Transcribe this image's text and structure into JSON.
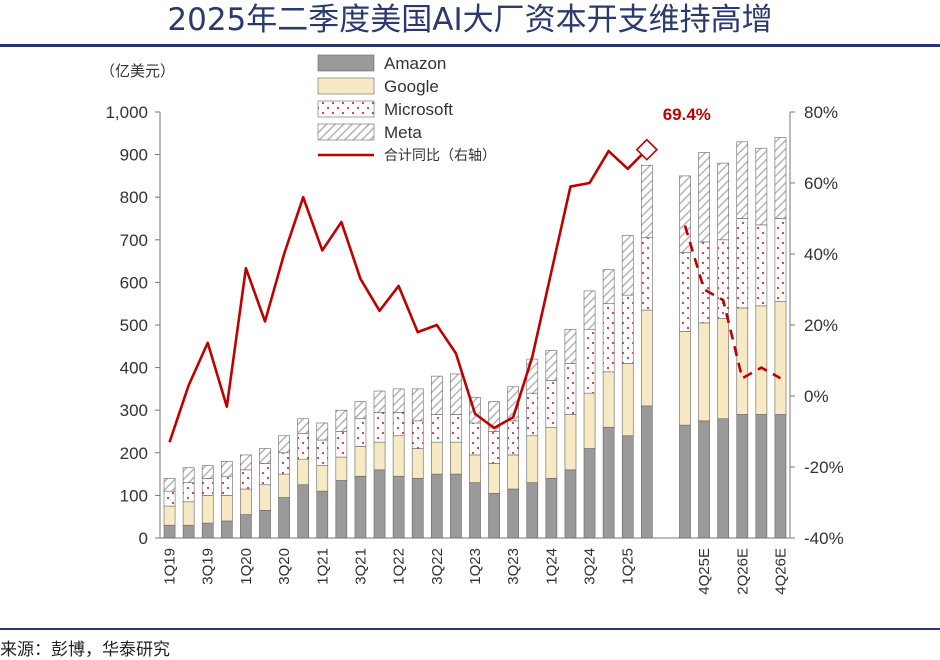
{
  "title": "2025年二季度美国AI大厂资本开支维持高增",
  "unit_label": "（亿美元）",
  "source": "来源：彭博，华泰研究",
  "colors": {
    "amazon": "#9a9a9a",
    "google": "#f6e9c3",
    "microsoft": "#ffffff",
    "microsoft_dots": "#d33",
    "meta": "#ffffff",
    "meta_hatch": "#b5b5b5",
    "line": "#c00000",
    "title": "#2a3a6e",
    "rule": "#27356b"
  },
  "chart_data": {
    "type": "bar",
    "stacked": true,
    "legend_position": "top-center",
    "categories": [
      "1Q19",
      "2Q19",
      "3Q19",
      "4Q19",
      "1Q20",
      "2Q20",
      "3Q20",
      "4Q20",
      "1Q21",
      "2Q21",
      "3Q21",
      "4Q21",
      "1Q22",
      "2Q22",
      "3Q22",
      "4Q22",
      "1Q23",
      "2Q23",
      "3Q23",
      "4Q23",
      "1Q24",
      "2Q24",
      "3Q24",
      "4Q24",
      "1Q25",
      "2Q25",
      "",
      "3Q25E",
      "4Q25E",
      "1Q26E",
      "2Q26E",
      "3Q26E",
      "4Q26E"
    ],
    "tick_labels": [
      "1Q19",
      "3Q19",
      "1Q20",
      "3Q20",
      "1Q21",
      "3Q21",
      "1Q22",
      "3Q22",
      "1Q23",
      "3Q23",
      "1Q24",
      "3Q24",
      "1Q25",
      "4Q25E",
      "2Q26E",
      "4Q26E"
    ],
    "tick_label_indices": [
      0,
      2,
      4,
      6,
      8,
      10,
      12,
      14,
      16,
      18,
      20,
      22,
      24,
      28,
      30,
      32
    ],
    "series": [
      {
        "name": "Amazon",
        "values": [
          30,
          30,
          35,
          40,
          55,
          65,
          95,
          125,
          110,
          135,
          145,
          160,
          145,
          140,
          150,
          150,
          130,
          105,
          115,
          130,
          140,
          160,
          210,
          260,
          240,
          310,
          null,
          265,
          275,
          280,
          290,
          290,
          290
        ]
      },
      {
        "name": "Google",
        "values": [
          45,
          55,
          65,
          60,
          60,
          60,
          55,
          60,
          60,
          55,
          70,
          65,
          95,
          70,
          75,
          75,
          65,
          70,
          80,
          110,
          120,
          130,
          130,
          130,
          170,
          225,
          null,
          220,
          230,
          235,
          250,
          255,
          265
        ]
      },
      {
        "name": "Microsoft",
        "values": [
          35,
          45,
          40,
          45,
          45,
          50,
          50,
          60,
          60,
          60,
          65,
          70,
          55,
          65,
          65,
          65,
          75,
          75,
          80,
          100,
          110,
          120,
          150,
          160,
          160,
          170,
          null,
          185,
          190,
          185,
          210,
          190,
          195
        ]
      },
      {
        "name": "Meta",
        "values": [
          30,
          35,
          30,
          35,
          35,
          35,
          40,
          35,
          40,
          50,
          40,
          50,
          55,
          75,
          90,
          95,
          60,
          70,
          80,
          80,
          70,
          80,
          90,
          80,
          140,
          170,
          null,
          180,
          210,
          180,
          180,
          180,
          190
        ]
      }
    ],
    "line_series": {
      "name": "合计同比（右轴）",
      "axis": "right",
      "values": [
        -13,
        3,
        15,
        -3,
        36,
        21,
        40,
        56,
        41,
        49,
        33,
        24,
        31,
        18,
        20,
        12,
        -5,
        -9,
        -6,
        11,
        35,
        59,
        60,
        69,
        64,
        69.4,
        null,
        48,
        30,
        27,
        5,
        8,
        5
      ],
      "projected_from_index": 27,
      "annotation": {
        "index": 25,
        "text": "69.4%"
      }
    },
    "ylim": [
      0,
      1000
    ],
    "yticks": [
      "0",
      "100",
      "200",
      "300",
      "400",
      "500",
      "600",
      "700",
      "800",
      "900",
      "1,000"
    ],
    "y2lim": [
      -40,
      80
    ],
    "y2ticks": [
      "-40%",
      "-20%",
      "0%",
      "20%",
      "40%",
      "60%",
      "80%"
    ],
    "grid": false
  }
}
